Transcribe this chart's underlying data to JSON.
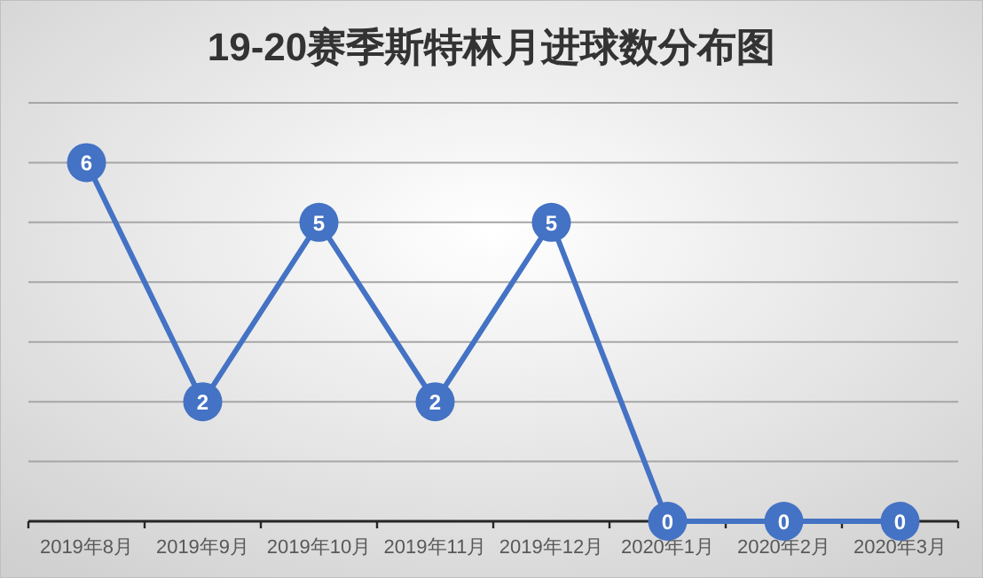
{
  "chart_data": {
    "type": "line",
    "title": "19-20赛季斯特林月进球数分布图",
    "categories": [
      "2019年8月",
      "2019年9月",
      "2019年10月",
      "2019年11月",
      "2019年12月",
      "2020年1月",
      "2020年2月",
      "2020年3月"
    ],
    "series": [
      {
        "color": "#4472c4",
        "values": [
          6,
          2,
          5,
          2,
          5,
          0,
          0,
          0
        ]
      }
    ],
    "ylim": [
      0,
      7
    ],
    "yticks": [
      {
        "value": 0,
        "label": null
      },
      {
        "value": 1,
        "label": null
      },
      {
        "value": 2,
        "label": null
      },
      {
        "value": 3,
        "label": null
      },
      {
        "value": 4,
        "label": null
      },
      {
        "value": 5,
        "label": null
      },
      {
        "value": 6,
        "label": null
      },
      {
        "value": 7,
        "label": null
      }
    ],
    "tick_labels": "x",
    "grid": "y",
    "marker": "circle",
    "data_labels": true
  }
}
